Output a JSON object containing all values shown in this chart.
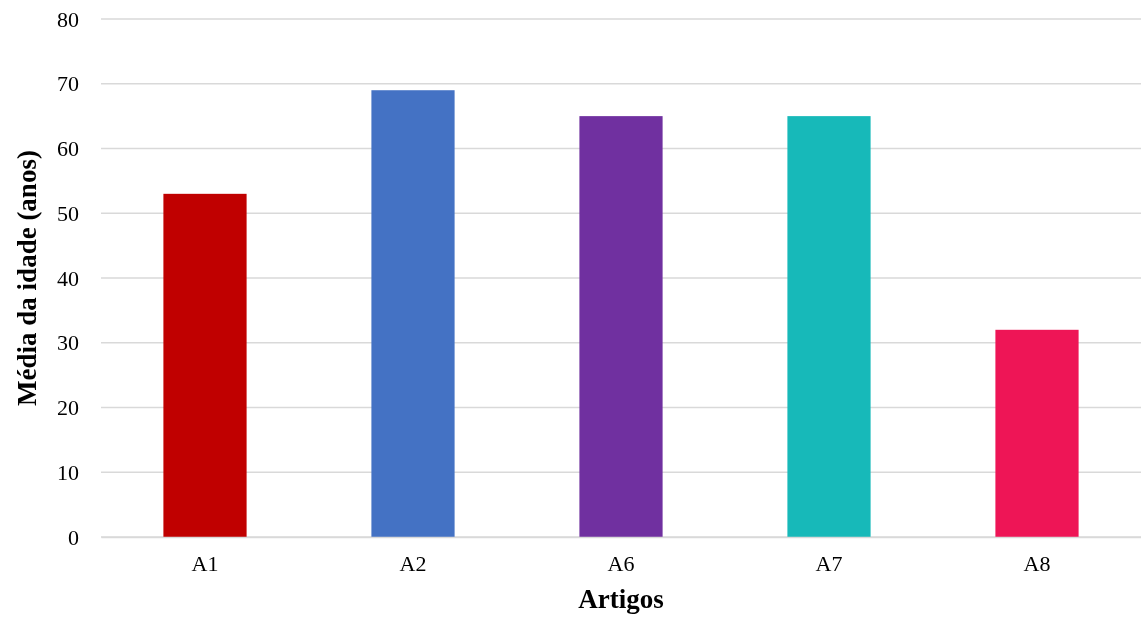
{
  "chart_data": {
    "type": "bar",
    "xlabel": "Artigos",
    "ylabel": "Média da idade (anos)",
    "categories": [
      "A1",
      "A2",
      "A6",
      "A7",
      "A8"
    ],
    "values": [
      53,
      69,
      65,
      65,
      32
    ],
    "colors": [
      "#c00000",
      "#4472c4",
      "#7030a0",
      "#17b9b9",
      "#ee1556"
    ],
    "ylim": [
      0,
      80
    ],
    "yticks": [
      0,
      10,
      20,
      30,
      40,
      50,
      60,
      70,
      80
    ],
    "grid": "y"
  }
}
